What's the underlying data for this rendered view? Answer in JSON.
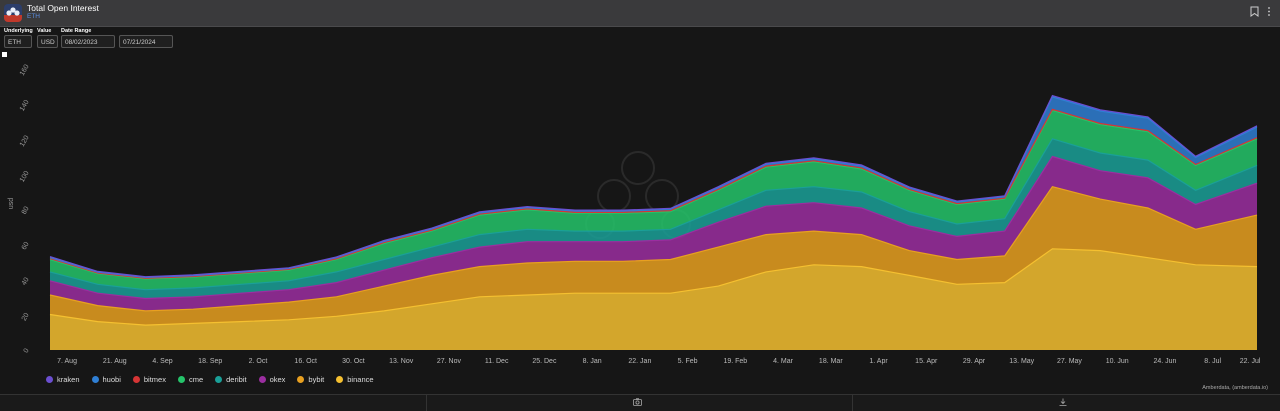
{
  "header": {
    "title": "Total Open Interest",
    "subtitle": "ETH",
    "bookmark_icon": "bookmark-icon",
    "menu_icon": "more-vertical-icon"
  },
  "controls": {
    "underlying_label": "Underlying",
    "underlying_value": "ETH",
    "value_label": "Value",
    "value_value": "USD",
    "date_range_label": "Date Range",
    "date_start": "08/02/2023",
    "date_end": "07/21/2024"
  },
  "footer": {
    "credit": "Amberdata, (amberdata.io)",
    "camera_icon": "camera-icon",
    "download_icon": "download-icon"
  },
  "chart_data": {
    "type": "area",
    "stacked": true,
    "ylabel": "usd",
    "ylim": [
      0,
      160
    ],
    "y_ticks": [
      0,
      20,
      40,
      60,
      80,
      100,
      120,
      140,
      160
    ],
    "x_tick_labels": [
      "7. Aug",
      "21. Aug",
      "4. Sep",
      "18. Sep",
      "2. Oct",
      "16. Oct",
      "30. Oct",
      "13. Nov",
      "27. Nov",
      "11. Dec",
      "25. Dec",
      "8. Jan",
      "22. Jan",
      "5. Feb",
      "19. Feb",
      "4. Mar",
      "18. Mar",
      "1. Apr",
      "15. Apr",
      "29. Apr",
      "13. May",
      "27. May",
      "10. Jun",
      "24. Jun",
      "8. Jul",
      "22. Jul"
    ],
    "x_start": "2023-08-02",
    "x_end": "2024-07-21",
    "grid": false,
    "legend_position": "bottom-left",
    "dates": [
      "2023-08-02",
      "2023-08-16",
      "2023-08-30",
      "2023-09-13",
      "2023-09-27",
      "2023-10-11",
      "2023-10-25",
      "2023-11-08",
      "2023-11-22",
      "2023-12-06",
      "2023-12-20",
      "2024-01-03",
      "2024-01-17",
      "2024-01-31",
      "2024-02-14",
      "2024-02-28",
      "2024-03-13",
      "2024-03-27",
      "2024-04-10",
      "2024-04-24",
      "2024-05-08",
      "2024-05-22",
      "2024-06-05",
      "2024-06-19",
      "2024-07-03",
      "2024-07-21"
    ],
    "series": [
      {
        "name": "binance",
        "color": "#f5c030",
        "values": [
          20,
          16,
          14,
          15,
          16,
          17,
          19,
          22,
          26,
          30,
          31,
          32,
          32,
          32,
          36,
          44,
          48,
          47,
          42,
          37,
          38,
          57,
          56,
          52,
          48,
          47
        ]
      },
      {
        "name": "bybit",
        "color": "#e8a020",
        "values": [
          11,
          9,
          8,
          8,
          9,
          10,
          11,
          14,
          16,
          17,
          18,
          18,
          18,
          19,
          22,
          21,
          19,
          18,
          14,
          14,
          15,
          35,
          29,
          28,
          20,
          29
        ]
      },
      {
        "name": "okex",
        "color": "#9b2ea0",
        "values": [
          8,
          7,
          7,
          7,
          7,
          7,
          8,
          9,
          10,
          11,
          12,
          11,
          11,
          11,
          14,
          16,
          16,
          15,
          14,
          13,
          14,
          17,
          16,
          17,
          14,
          18
        ]
      },
      {
        "name": "deribit",
        "color": "#1aa098",
        "values": [
          5,
          5,
          5,
          5,
          5,
          5,
          6,
          6,
          6,
          7,
          7,
          6,
          6,
          6,
          7,
          9,
          9,
          9,
          8,
          7,
          7,
          10,
          10,
          10,
          8,
          10
        ]
      },
      {
        "name": "cme",
        "color": "#25c46a",
        "values": [
          7,
          6,
          6,
          6,
          6,
          6,
          7,
          9,
          9,
          11,
          11,
          10,
          10,
          10,
          11,
          13,
          14,
          13,
          12,
          11,
          11,
          16,
          16,
          16,
          14,
          15
        ]
      },
      {
        "name": "bitmex",
        "color": "#d63535",
        "values": [
          0.5,
          0.4,
          0.4,
          0.4,
          0.4,
          0.4,
          0.4,
          0.5,
          0.5,
          0.5,
          0.5,
          0.5,
          0.5,
          0.5,
          0.5,
          0.6,
          0.6,
          0.6,
          0.5,
          0.5,
          0.5,
          0.6,
          0.6,
          0.6,
          0.5,
          0.6
        ]
      },
      {
        "name": "huobi",
        "color": "#2f7fd4",
        "values": [
          0.6,
          0.5,
          0.5,
          0.5,
          0.5,
          0.5,
          0.6,
          0.7,
          0.7,
          0.8,
          0.8,
          0.8,
          0.8,
          0.8,
          0.9,
          1,
          1,
          1,
          0.9,
          0.9,
          0.9,
          7,
          7,
          7,
          4,
          6
        ]
      },
      {
        "name": "kraken",
        "color": "#6b4fd1",
        "values": [
          0.5,
          0.4,
          0.4,
          0.4,
          0.4,
          0.4,
          0.4,
          0.5,
          0.5,
          0.5,
          0.5,
          0.5,
          0.5,
          0.5,
          0.6,
          0.6,
          0.6,
          0.6,
          0.5,
          0.5,
          0.5,
          0.7,
          0.7,
          0.7,
          0.6,
          0.7
        ]
      }
    ]
  }
}
